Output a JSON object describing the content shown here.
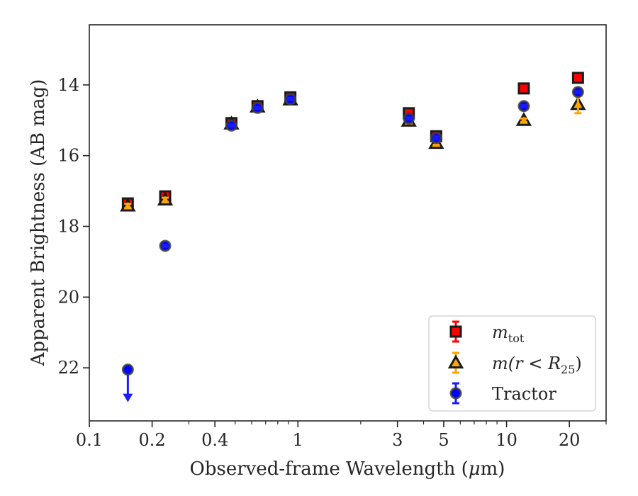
{
  "chart_data": {
    "type": "scatter",
    "title": "",
    "xlabel_pre": "Observed-frame Wavelength (",
    "xlabel_mu": "μ",
    "xlabel_post": "m)",
    "ylabel": "Apparent Brightness (AB mag)",
    "x_scale": "log",
    "y_inverted": true,
    "xlim": [
      0.1,
      30
    ],
    "ylim": [
      23.5,
      12.3
    ],
    "x_ticks": [
      {
        "value": 0.1,
        "label": "0.1"
      },
      {
        "value": 0.2,
        "label": "0.2"
      },
      {
        "value": 0.4,
        "label": "0.4"
      },
      {
        "value": 1,
        "label": "1"
      },
      {
        "value": 3,
        "label": "3"
      },
      {
        "value": 5,
        "label": "5"
      },
      {
        "value": 10,
        "label": "10"
      },
      {
        "value": 20,
        "label": "20"
      }
    ],
    "y_ticks": [
      {
        "value": 14,
        "label": "14"
      },
      {
        "value": 16,
        "label": "16"
      },
      {
        "value": 18,
        "label": "18"
      },
      {
        "value": 20,
        "label": "20"
      },
      {
        "value": 22,
        "label": "22"
      }
    ],
    "grid": false,
    "legend_position": "bottom-right",
    "series": [
      {
        "name": "m_tot",
        "marker": "square",
        "color": "#ff0000",
        "edge_color": "#1a1a1a",
        "error_color": "#ff0000",
        "points": [
          {
            "x": 0.153,
            "y": 17.35,
            "err": 0.08
          },
          {
            "x": 0.231,
            "y": 17.15,
            "err": 0.07
          },
          {
            "x": 0.48,
            "y": 15.08,
            "err": 0.03
          },
          {
            "x": 0.64,
            "y": 14.6,
            "err": 0.03
          },
          {
            "x": 0.92,
            "y": 14.35,
            "err": 0.03
          },
          {
            "x": 3.4,
            "y": 14.8,
            "err": 0.03
          },
          {
            "x": 4.6,
            "y": 15.45,
            "err": 0.05
          },
          {
            "x": 12.1,
            "y": 14.1,
            "err": 0.03
          },
          {
            "x": 22.0,
            "y": 13.8,
            "err": 0.03
          }
        ]
      },
      {
        "name": "m(r<R25)",
        "marker": "triangle",
        "color": "#ffa500",
        "edge_color": "#1a1a1a",
        "error_color": "#ffa500",
        "points": [
          {
            "x": 0.153,
            "y": 17.42,
            "err": 0.06
          },
          {
            "x": 0.231,
            "y": 17.25,
            "err": 0.06
          },
          {
            "x": 0.48,
            "y": 15.1,
            "err": 0.03
          },
          {
            "x": 0.64,
            "y": 14.62,
            "err": 0.03
          },
          {
            "x": 0.92,
            "y": 14.42,
            "err": 0.03
          },
          {
            "x": 3.4,
            "y": 15.02,
            "err": 0.04
          },
          {
            "x": 4.6,
            "y": 15.65,
            "err": 0.05
          },
          {
            "x": 12.1,
            "y": 15.0,
            "err": 0.05
          },
          {
            "x": 22.0,
            "y": 14.55,
            "err": 0.25
          }
        ]
      },
      {
        "name": "Tractor",
        "marker": "circle",
        "color": "#0000ff",
        "edge_color": "#404040",
        "error_color": "#1a1aff",
        "points": [
          {
            "x": 0.153,
            "y": 22.05,
            "err": 0,
            "upper_limit": true
          },
          {
            "x": 0.231,
            "y": 18.55,
            "err": 0.03
          },
          {
            "x": 0.48,
            "y": 15.15,
            "err": 0.03
          },
          {
            "x": 0.64,
            "y": 14.65,
            "err": 0.03
          },
          {
            "x": 0.92,
            "y": 14.4,
            "err": 0.03
          },
          {
            "x": 3.4,
            "y": 14.95,
            "err": 0.03
          },
          {
            "x": 4.6,
            "y": 15.5,
            "err": 0.04
          },
          {
            "x": 12.1,
            "y": 14.6,
            "err": 0.03
          },
          {
            "x": 22.0,
            "y": 14.2,
            "err": 0.03
          }
        ]
      }
    ],
    "legend": [
      {
        "marker": "square",
        "label_base": "m",
        "label_sub": "tot",
        "label_tail": ""
      },
      {
        "marker": "triangle",
        "label_base": "m(r < R",
        "label_sub": "25",
        "label_tail": ")"
      },
      {
        "marker": "circle",
        "label_base": "Tractor",
        "label_sub": "",
        "label_tail": ""
      }
    ]
  }
}
